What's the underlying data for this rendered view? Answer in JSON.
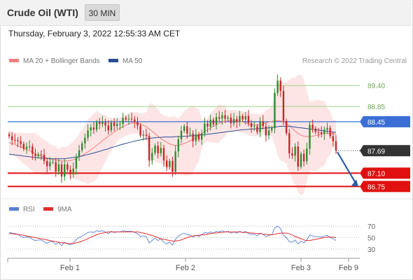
{
  "header": {
    "title": "Crude Oil (WTI)",
    "timeframe": "30 MIN"
  },
  "datetime": "Thursday, February 3, 2022 12:55:33 AM CET",
  "legend": {
    "ma20": "MA 20 + Bollinger Bands",
    "ma50": "MA 50",
    "credit": "Research © 2022 Trading Central"
  },
  "rsi_legend": {
    "rsi": "RSI",
    "ma9": "9MA"
  },
  "colors": {
    "candle_up": "#2e8b2e",
    "candle_down": "#c62828",
    "ma20": "#f08080",
    "ma50": "#2a4d8f",
    "bollinger_fill": "#fde1e1",
    "support": "#e01010",
    "resistance_green": "#9ed28a",
    "pivot_blue": "#3b6fd6",
    "arrow": "#2a5da8",
    "rsi": "#5b7fd4",
    "rsi_ma": "#e03030"
  },
  "chart_data": {
    "type": "candlestick",
    "symbol": "Crude Oil (WTI)",
    "interval": "30 MIN",
    "x_labels": [
      "Feb 1",
      "Feb 2",
      "Feb 3",
      "Feb 9"
    ],
    "y_ticks": [
      86.75,
      87.1,
      87.69,
      88.45,
      88.85,
      89.4
    ],
    "price_range": [
      86.5,
      89.9
    ],
    "current_price": 87.69,
    "levels": [
      {
        "value": 89.4,
        "label": "89.40",
        "kind": "resistance",
        "color": "#6aa84f"
      },
      {
        "value": 88.85,
        "label": "88.85",
        "kind": "resistance",
        "color": "#6aa84f"
      },
      {
        "value": 88.45,
        "label": "88.45",
        "kind": "pivot",
        "color": "#3b6fd6"
      },
      {
        "value": 87.69,
        "label": "87.69",
        "kind": "last",
        "color": "#333333"
      },
      {
        "value": 87.1,
        "label": "87.10",
        "kind": "support",
        "color": "#e01010"
      },
      {
        "value": 86.75,
        "label": "86.75",
        "kind": "support",
        "color": "#e01010"
      }
    ],
    "close_series": [
      88.07,
      87.97,
      87.96,
      87.94,
      87.87,
      87.74,
      87.8,
      87.8,
      87.61,
      87.54,
      87.59,
      87.58,
      87.42,
      87.28,
      87.39,
      87.39,
      87.14,
      87.33,
      87.01,
      87.33,
      87.19,
      87.07,
      87.22,
      87.53,
      87.7,
      87.88,
      88.03,
      88.22,
      88.3,
      88.24,
      88.44,
      88.39,
      88.44,
      88.35,
      88.22,
      88.43,
      88.34,
      88.39,
      88.39,
      88.55,
      88.51,
      88.53,
      88.51,
      88.44,
      88.35,
      88.09,
      88.11,
      88.08,
      87.43,
      87.63,
      87.82,
      87.62,
      87.76,
      87.43,
      87.26,
      87.42,
      87.14,
      87.67,
      87.99,
      88.21,
      88.33,
      88.14,
      88.14,
      87.94,
      88.12,
      87.98,
      88.14,
      88.4,
      88.32,
      88.5,
      88.38,
      88.57,
      88.53,
      88.62,
      88.53,
      88.56,
      88.41,
      88.52,
      88.44,
      88.6,
      88.51,
      88.6,
      88.41,
      88.32,
      88.33,
      88.18,
      88.46,
      88.33,
      88.09,
      88.22,
      88.28,
      89.21,
      89.53,
      89.26,
      88.47,
      88.15,
      87.62,
      87.56,
      87.8,
      87.27,
      87.61,
      87.41,
      87.74,
      88.37,
      88.27,
      88.18,
      88.17,
      88.13,
      88.24,
      88.29,
      88.07,
      87.94,
      87.69
    ],
    "ma20_series": [
      87.9,
      87.88,
      87.85,
      87.82,
      87.79,
      87.75,
      87.72,
      87.69,
      87.65,
      87.61,
      87.58,
      87.55,
      87.52,
      87.49,
      87.47,
      87.46,
      87.44,
      87.43,
      87.42,
      87.42,
      87.42,
      87.43,
      87.45,
      87.48,
      87.52,
      87.56,
      87.61,
      87.66,
      87.72,
      87.77,
      87.83,
      87.89,
      87.95,
      88.01,
      88.07,
      88.12,
      88.18,
      88.23,
      88.28,
      88.32,
      88.36,
      88.39,
      88.41,
      88.42,
      88.41,
      88.39,
      88.36,
      88.32,
      88.26,
      88.2,
      88.14,
      88.07,
      88.01,
      87.96,
      87.91,
      87.87,
      87.84,
      87.83,
      87.83,
      87.85,
      87.88,
      87.91,
      87.95,
      87.99,
      88.04,
      88.09,
      88.14,
      88.19,
      88.24,
      88.29,
      88.33,
      88.37,
      88.41,
      88.44,
      88.46,
      88.47,
      88.48,
      88.48,
      88.47,
      88.46,
      88.44,
      88.42,
      88.39,
      88.37,
      88.36,
      88.36,
      88.37,
      88.39,
      88.42,
      88.44,
      88.46,
      88.47,
      88.48,
      88.47,
      88.45,
      88.41,
      88.35,
      88.27,
      88.2,
      88.14,
      88.1,
      88.07,
      88.06,
      88.06,
      88.07,
      88.09,
      88.11,
      88.13,
      88.14,
      88.15,
      88.15,
      88.14,
      88.12
    ],
    "ma50_series": [
      87.6,
      87.59,
      87.58,
      87.57,
      87.56,
      87.55,
      87.54,
      87.53,
      87.52,
      87.51,
      87.5,
      87.5,
      87.49,
      87.49,
      87.48,
      87.48,
      87.48,
      87.48,
      87.48,
      87.48,
      87.49,
      87.5,
      87.51,
      87.52,
      87.54,
      87.55,
      87.57,
      87.59,
      87.61,
      87.63,
      87.65,
      87.67,
      87.7,
      87.72,
      87.74,
      87.77,
      87.79,
      87.81,
      87.84,
      87.86,
      87.88,
      87.9,
      87.92,
      87.94,
      87.96,
      87.97,
      87.99,
      88.0,
      88.01,
      88.02,
      88.03,
      88.04,
      88.04,
      88.05,
      88.05,
      88.05,
      88.05,
      88.06,
      88.06,
      88.06,
      88.07,
      88.07,
      88.08,
      88.08,
      88.09,
      88.1,
      88.1,
      88.11,
      88.12,
      88.13,
      88.14,
      88.15,
      88.16,
      88.17,
      88.18,
      88.19,
      88.2,
      88.21,
      88.22,
      88.23,
      88.24,
      88.24,
      88.25,
      88.26,
      88.26,
      88.27,
      88.27,
      88.28,
      88.28,
      88.29,
      88.3,
      88.31,
      88.32,
      88.33,
      88.33,
      88.33,
      88.33,
      88.32,
      88.31,
      88.3,
      88.29,
      88.28,
      88.27,
      88.26,
      88.25,
      88.24,
      88.23,
      88.22,
      88.21,
      88.2,
      88.19,
      88.18,
      88.17
    ],
    "forecast_arrow": {
      "from": 87.69,
      "to": 86.75
    },
    "rsi": {
      "ticks": [
        70,
        50,
        30
      ],
      "range": [
        20,
        80
      ],
      "rsi_series": [
        59,
        58,
        57,
        56,
        52,
        50,
        51,
        51,
        47,
        45,
        46,
        46,
        43,
        40,
        43,
        43,
        38,
        42,
        36,
        42,
        39,
        37,
        40,
        47,
        50,
        53,
        56,
        59,
        60,
        59,
        62,
        61,
        62,
        60,
        57,
        61,
        59,
        60,
        60,
        62,
        61,
        61,
        61,
        59,
        57,
        52,
        53,
        52,
        41,
        45,
        49,
        45,
        48,
        42,
        39,
        42,
        37,
        47,
        53,
        56,
        58,
        55,
        55,
        51,
        54,
        52,
        55,
        59,
        58,
        60,
        58,
        61,
        60,
        62,
        60,
        61,
        58,
        60,
        58,
        61,
        59,
        61,
        57,
        56,
        56,
        53,
        58,
        56,
        52,
        54,
        55,
        67,
        70,
        66,
        54,
        50,
        43,
        42,
        46,
        39,
        44,
        41,
        46,
        55,
        53,
        52,
        52,
        51,
        53,
        54,
        50,
        48,
        45
      ],
      "ma9_series": [
        57,
        57,
        56,
        56,
        55,
        54,
        53,
        52,
        51,
        50,
        49,
        48,
        47,
        46,
        45,
        44,
        43,
        42,
        41,
        41,
        40,
        40,
        40,
        41,
        42,
        44,
        46,
        48,
        51,
        53,
        55,
        57,
        58,
        59,
        60,
        60,
        60,
        60,
        60,
        60,
        60,
        60,
        60,
        60,
        60,
        59,
        58,
        57,
        55,
        54,
        52,
        50,
        48,
        47,
        46,
        45,
        44,
        44,
        45,
        46,
        48,
        50,
        52,
        53,
        54,
        54,
        55,
        55,
        56,
        57,
        58,
        58,
        59,
        59,
        60,
        60,
        60,
        60,
        60,
        60,
        59,
        59,
        59,
        58,
        58,
        57,
        57,
        56,
        56,
        55,
        55,
        56,
        57,
        58,
        58,
        58,
        57,
        55,
        52,
        50,
        48,
        46,
        45,
        45,
        46,
        47,
        48,
        49,
        50,
        51,
        51,
        51,
        50
      ]
    }
  }
}
